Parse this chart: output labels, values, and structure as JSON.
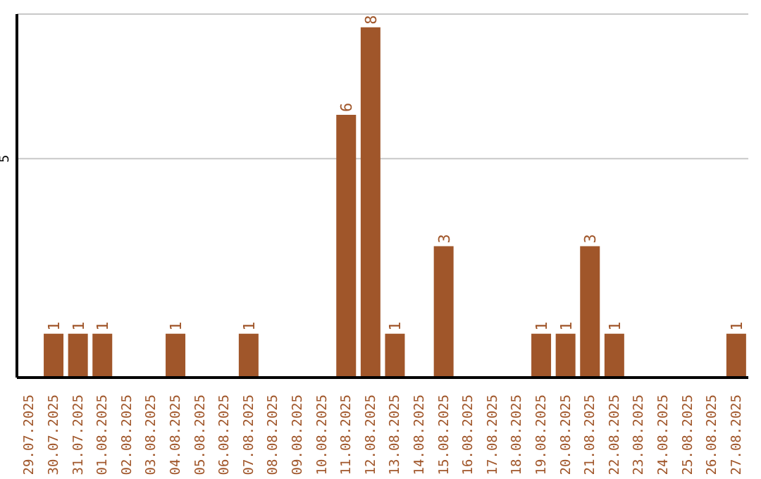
{
  "chart_data": {
    "type": "bar",
    "categories": [
      "29.07.2025",
      "30.07.2025",
      "31.07.2025",
      "01.08.2025",
      "02.08.2025",
      "03.08.2025",
      "04.08.2025",
      "05.08.2025",
      "06.08.2025",
      "07.08.2025",
      "08.08.2025",
      "09.08.2025",
      "10.08.2025",
      "11.08.2025",
      "12.08.2025",
      "13.08.2025",
      "14.08.2025",
      "15.08.2025",
      "16.08.2025",
      "17.08.2025",
      "18.08.2025",
      "19.08.2025",
      "20.08.2025",
      "21.08.2025",
      "22.08.2025",
      "23.08.2025",
      "24.08.2025",
      "25.08.2025",
      "26.08.2025",
      "27.08.2025"
    ],
    "values": [
      0,
      1,
      1,
      1,
      0,
      0,
      1,
      0,
      0,
      1,
      0,
      0,
      0,
      6,
      8,
      1,
      0,
      3,
      0,
      0,
      0,
      1,
      1,
      3,
      1,
      0,
      0,
      0,
      0,
      1
    ],
    "value_labels": [
      null,
      "1",
      "1",
      "1",
      null,
      null,
      "1",
      null,
      null,
      "1",
      null,
      null,
      null,
      "6",
      "8",
      "1",
      null,
      "3",
      null,
      null,
      null,
      "1",
      "1",
      "3",
      "1",
      null,
      null,
      null,
      null,
      "1"
    ],
    "color": "#a0562a",
    "ylim": [
      0,
      8.3
    ],
    "yticks": [
      {
        "value": 0,
        "label": null
      },
      5
    ],
    "grid": "y",
    "legend": false
  }
}
